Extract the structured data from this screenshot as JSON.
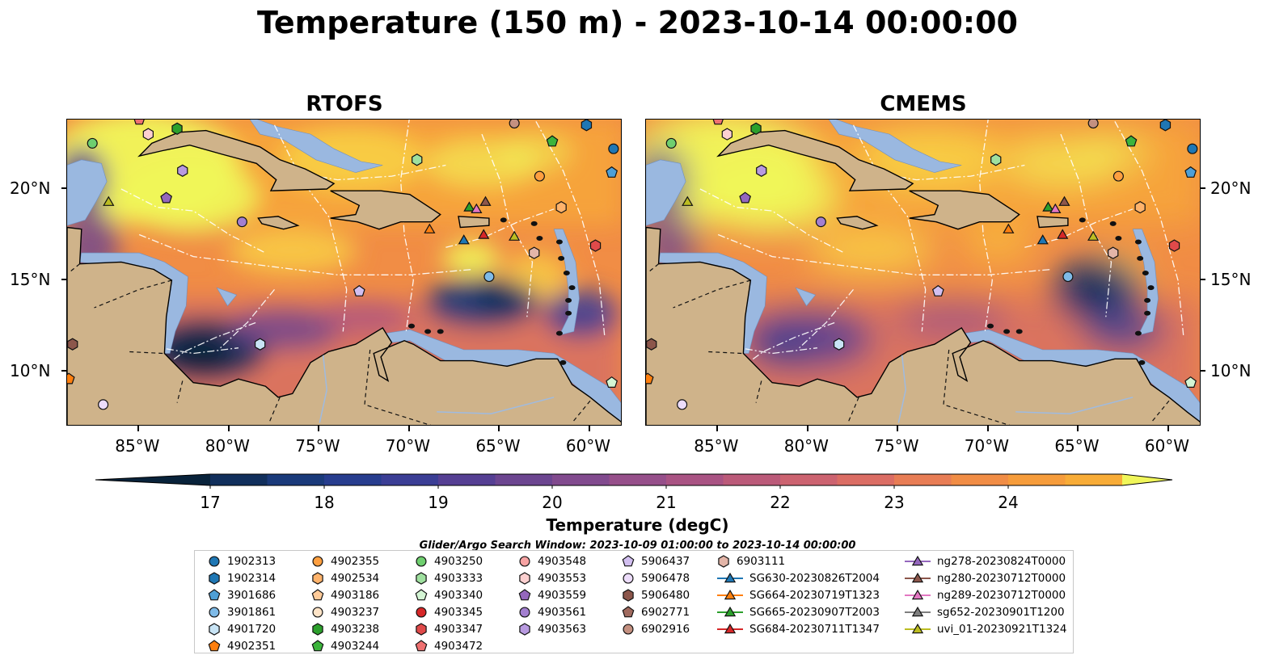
{
  "title": "Temperature (150 m) - 2023-10-14 00:00:00",
  "panels": [
    {
      "title": "RTOFS"
    },
    {
      "title": "CMEMS"
    }
  ],
  "axes": {
    "lat_ticks": [
      "20°N",
      "15°N",
      "10°N"
    ],
    "lat_values": [
      20,
      15,
      10
    ],
    "lon_ticks": [
      "85°W",
      "80°W",
      "75°W",
      "70°W",
      "65°W",
      "60°W"
    ],
    "lon_values": [
      -85,
      -80,
      -75,
      -70,
      -65,
      -60
    ],
    "lon_range": [
      -89,
      -58.2
    ],
    "lat_range": [
      7,
      23.8
    ]
  },
  "colorbar": {
    "label": "Temperature (degC)",
    "ticks": [
      "17",
      "18",
      "19",
      "20",
      "21",
      "22",
      "23",
      "24"
    ],
    "range": [
      17,
      24.5
    ],
    "step": 0.5,
    "colors": [
      "#08223a",
      "#112f5c",
      "#1a3a7a",
      "#273d8e",
      "#3b3e95",
      "#553f93",
      "#6c4590",
      "#814a8e",
      "#964f8a",
      "#a95383",
      "#bb5a79",
      "#cc6370",
      "#db6d64",
      "#e87d55",
      "#f18d45",
      "#f69c3b",
      "#f8ac37",
      "#f9bd3c",
      "#f8cf45",
      "#f4e351"
    ],
    "land_color": "#cfb38a",
    "shelf_color": "#9ab8e0",
    "high_color": "#f0f65a"
  },
  "search_window": "Glider/Argo Search Window: 2023-10-09 01:00:00 to 2023-10-14 00:00:00",
  "legend": [
    {
      "label": "1902313",
      "marker": "circle",
      "color": "#1f77b4"
    },
    {
      "label": "1902314",
      "marker": "hexagon",
      "color": "#1f77b4"
    },
    {
      "label": "3901686",
      "marker": "pentagon",
      "color": "#4e9fd6"
    },
    {
      "label": "3901861",
      "marker": "circle",
      "color": "#7fbbe8"
    },
    {
      "label": "4901720",
      "marker": "hexagon",
      "color": "#c8e4f5"
    },
    {
      "label": "4902351",
      "marker": "pentagon",
      "color": "#ff7f0e"
    },
    {
      "label": "4902355",
      "marker": "circle",
      "color": "#ff9f40"
    },
    {
      "label": "4902534",
      "marker": "hexagon",
      "color": "#ffb36b"
    },
    {
      "label": "4903186",
      "marker": "pentagon",
      "color": "#ffcb99"
    },
    {
      "label": "4903237",
      "marker": "circle",
      "color": "#ffe4c7"
    },
    {
      "label": "4903238",
      "marker": "hexagon",
      "color": "#2ca02c"
    },
    {
      "label": "4903244",
      "marker": "pentagon",
      "color": "#3cb43c"
    },
    {
      "label": "4903250",
      "marker": "circle",
      "color": "#6fcf6f"
    },
    {
      "label": "4903333",
      "marker": "hexagon",
      "color": "#9fe09f"
    },
    {
      "label": "4903340",
      "marker": "pentagon",
      "color": "#d4f5d4"
    },
    {
      "label": "4903345",
      "marker": "circle",
      "color": "#d62728"
    },
    {
      "label": "4903347",
      "marker": "hexagon",
      "color": "#e04a4a"
    },
    {
      "label": "4903472",
      "marker": "pentagon",
      "color": "#ee7070"
    },
    {
      "label": "4903548",
      "marker": "circle",
      "color": "#f7a3a3"
    },
    {
      "label": "4903553",
      "marker": "hexagon",
      "color": "#fcd0d0"
    },
    {
      "label": "4903559",
      "marker": "pentagon",
      "color": "#9467bd"
    },
    {
      "label": "4903561",
      "marker": "circle",
      "color": "#a37fd0"
    },
    {
      "label": "4903563",
      "marker": "hexagon",
      "color": "#b89ae0"
    },
    {
      "label": "5906437",
      "marker": "pentagon",
      "color": "#d2bff0"
    },
    {
      "label": "5906478",
      "marker": "circle",
      "color": "#ecdcfa"
    },
    {
      "label": "5906480",
      "marker": "hexagon",
      "color": "#8c564b"
    },
    {
      "label": "6902771",
      "marker": "pentagon",
      "color": "#a06a5e"
    },
    {
      "label": "6902916",
      "marker": "circle",
      "color": "#c49080"
    },
    {
      "label": "6903111",
      "marker": "hexagon",
      "color": "#e3b5a8"
    },
    {
      "label": "SG630-20230826T2004",
      "marker": "triangle-line",
      "color": "#1f77b4"
    },
    {
      "label": "SG664-20230719T1323",
      "marker": "triangle-line",
      "color": "#ff7f0e"
    },
    {
      "label": "SG665-20230907T2003",
      "marker": "triangle-line",
      "color": "#2ca02c"
    },
    {
      "label": "SG684-20230711T1347",
      "marker": "triangle-line",
      "color": "#d62728"
    },
    {
      "label": "ng278-20230824T0000",
      "marker": "triangle-line",
      "color": "#9467bd"
    },
    {
      "label": "ng280-20230712T0000",
      "marker": "triangle-line",
      "color": "#8c564b"
    },
    {
      "label": "ng289-20230712T0000",
      "marker": "triangle-line",
      "color": "#e377c2"
    },
    {
      "label": "sg652-20230901T1200",
      "marker": "triangle-line",
      "color": "#7f7f7f"
    },
    {
      "label": "uvi_01-20230921T1324",
      "marker": "triangle-line",
      "color": "#bcbd22"
    }
  ],
  "observations": [
    {
      "lon": -86.7,
      "lat": 19.3,
      "marker": "triangle",
      "color": "#bcbd22"
    },
    {
      "lon": -67.0,
      "lat": 17.2,
      "marker": "triangle",
      "color": "#1f77b4"
    },
    {
      "lon": -66.7,
      "lat": 19.0,
      "marker": "triangle",
      "color": "#2ca02c"
    },
    {
      "lon": -66.3,
      "lat": 18.9,
      "marker": "triangle",
      "color": "#e377c2"
    },
    {
      "lon": -65.9,
      "lat": 17.5,
      "marker": "triangle",
      "color": "#d62728"
    },
    {
      "lon": -65.8,
      "lat": 19.3,
      "marker": "triangle",
      "color": "#8c564b"
    },
    {
      "lon": -68.9,
      "lat": 17.8,
      "marker": "triangle",
      "color": "#ff7f0e"
    },
    {
      "lon": -64.2,
      "lat": 17.4,
      "marker": "triangle",
      "color": "#bcbd22"
    },
    {
      "lon": -82.9,
      "lat": 23.3,
      "marker": "hexagon",
      "color": "#2ca02c"
    },
    {
      "lon": -87.6,
      "lat": 22.5,
      "marker": "circle",
      "color": "#6fcf6f"
    },
    {
      "lon": -84.5,
      "lat": 23.0,
      "marker": "hexagon",
      "color": "#fcd0d0"
    },
    {
      "lon": -85.0,
      "lat": 23.8,
      "marker": "pentagon",
      "color": "#ee7070"
    },
    {
      "lon": -82.6,
      "lat": 21.0,
      "marker": "hexagon",
      "color": "#b89ae0"
    },
    {
      "lon": -83.5,
      "lat": 19.5,
      "marker": "pentagon",
      "color": "#9467bd"
    },
    {
      "lon": -79.3,
      "lat": 18.2,
      "marker": "circle",
      "color": "#a37fd0"
    },
    {
      "lon": -69.6,
      "lat": 21.6,
      "marker": "hexagon",
      "color": "#9fe09f"
    },
    {
      "lon": -64.2,
      "lat": 23.6,
      "marker": "circle",
      "color": "#c49080"
    },
    {
      "lon": -62.1,
      "lat": 22.6,
      "marker": "pentagon",
      "color": "#3cb43c"
    },
    {
      "lon": -60.2,
      "lat": 23.5,
      "marker": "hexagon",
      "color": "#1f77b4"
    },
    {
      "lon": -58.7,
      "lat": 22.2,
      "marker": "circle",
      "color": "#1f77b4"
    },
    {
      "lon": -58.8,
      "lat": 20.9,
      "marker": "pentagon",
      "color": "#4e9fd6"
    },
    {
      "lon": -62.8,
      "lat": 20.7,
      "marker": "circle",
      "color": "#ff9f40"
    },
    {
      "lon": -61.6,
      "lat": 19.0,
      "marker": "hexagon",
      "color": "#ffb36b"
    },
    {
      "lon": -59.7,
      "lat": 16.9,
      "marker": "hexagon",
      "color": "#e04a4a"
    },
    {
      "lon": -63.1,
      "lat": 16.5,
      "marker": "hexagon",
      "color": "#e3b5a8"
    },
    {
      "lon": -65.6,
      "lat": 15.2,
      "marker": "circle",
      "color": "#7fbbe8"
    },
    {
      "lon": -72.8,
      "lat": 14.4,
      "marker": "pentagon",
      "color": "#d2bff0"
    },
    {
      "lon": -78.3,
      "lat": 11.5,
      "marker": "hexagon",
      "color": "#c8e4f5"
    },
    {
      "lon": -88.7,
      "lat": 11.5,
      "marker": "hexagon",
      "color": "#8c564b"
    },
    {
      "lon": -88.9,
      "lat": 9.6,
      "marker": "pentagon",
      "color": "#ff7f0e"
    },
    {
      "lon": -87.0,
      "lat": 8.2,
      "marker": "circle",
      "color": "#ecdcfa"
    },
    {
      "lon": -58.8,
      "lat": 9.4,
      "marker": "pentagon",
      "color": "#d4f5d4"
    }
  ]
}
